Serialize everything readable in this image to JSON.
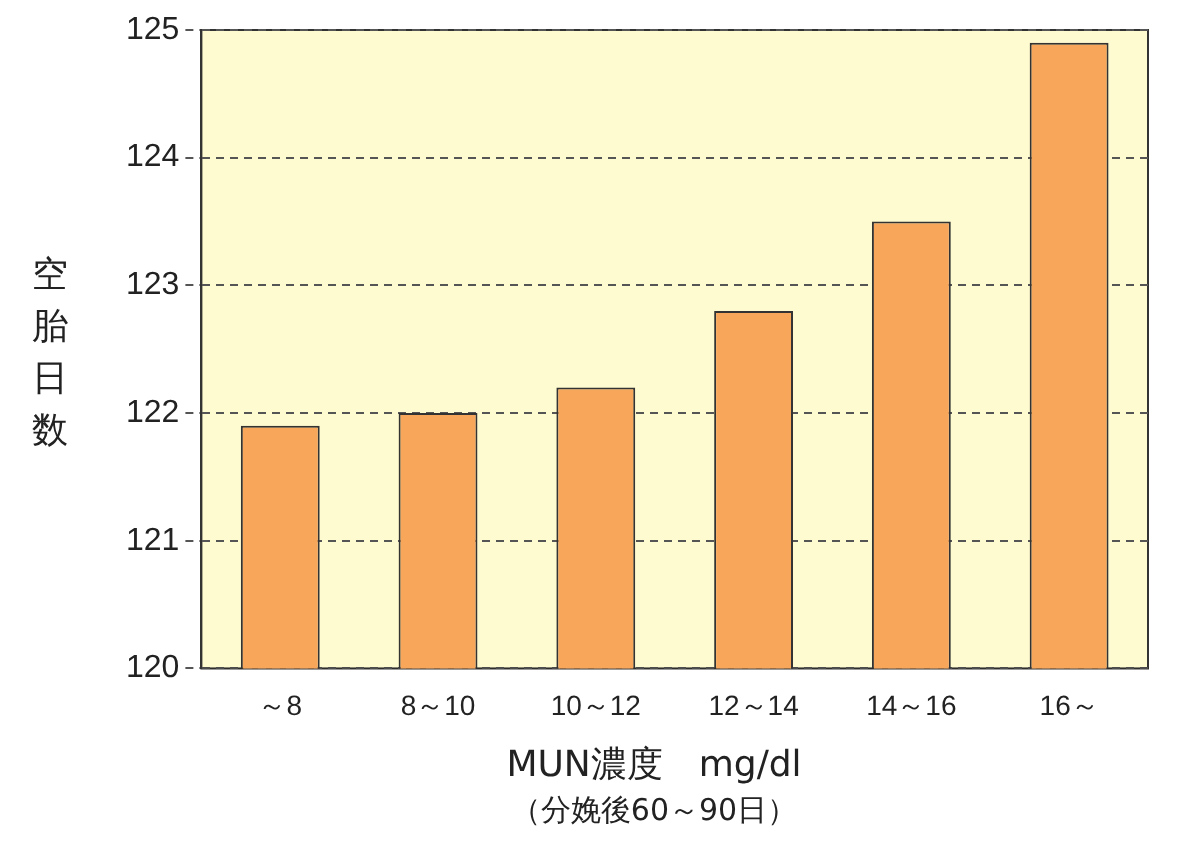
{
  "chart_data": {
    "type": "bar",
    "xlabel": "MUN濃度　mg/dl",
    "ylabel": "空胎日数",
    "annotations": [
      "（分娩後60～90日）"
    ],
    "categories": [
      "～8",
      "8～10",
      "10～12",
      "12～14",
      "14～16",
      "16～"
    ],
    "values": [
      121.9,
      122.0,
      122.2,
      122.8,
      123.5,
      124.9
    ],
    "color": "#f8a75a",
    "ylim": [
      120,
      125
    ],
    "yticks": [
      120,
      121,
      122,
      123,
      124,
      125
    ],
    "grid": "y"
  }
}
